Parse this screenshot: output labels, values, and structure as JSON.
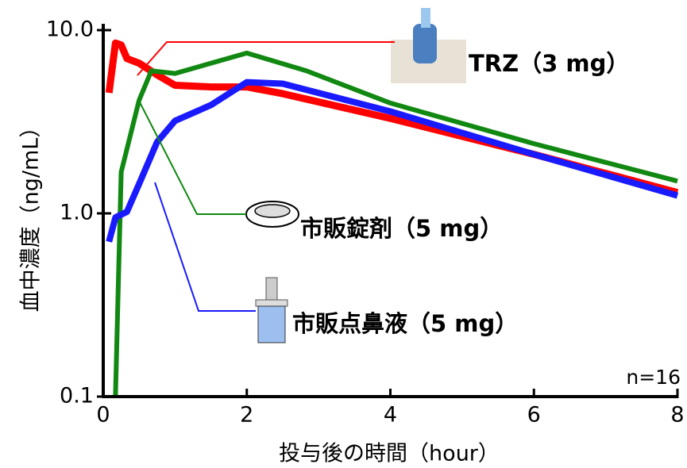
{
  "chart_data": {
    "type": "line",
    "xlabel": "投与後の時間（hour）",
    "ylabel": "血中濃度（ng/mL）",
    "annotation": "n=16",
    "log_y": true,
    "xlim": [
      0,
      8
    ],
    "xticks": [
      0,
      2,
      4,
      6,
      8
    ],
    "ylim": [
      0.1,
      10
    ],
    "yticks": [
      {
        "value": 10,
        "label": "10.0"
      },
      {
        "value": 1,
        "label": "1.0"
      },
      0.1
    ],
    "series": [
      {
        "name": "TRZ（3 mg）",
        "color": "#ff0000",
        "x": [
          0.08,
          0.17,
          0.25,
          0.33,
          0.5,
          0.75,
          1,
          1.5,
          2,
          2.5,
          4,
          6,
          8
        ],
        "values": [
          4.55,
          8.5,
          8.3,
          7.0,
          6.6,
          5.7,
          5.0,
          4.9,
          4.9,
          4.5,
          3.3,
          2.1,
          1.3
        ]
      },
      {
        "name": "市販錠剤（5 mg）",
        "color": "#118811",
        "x": [
          0.17,
          0.25,
          0.5,
          0.67,
          1,
          2,
          2.83,
          4,
          6,
          8
        ],
        "values": [
          0.1,
          1.68,
          4.15,
          6.0,
          5.8,
          7.5,
          6.0,
          4.0,
          2.4,
          1.5
        ]
      },
      {
        "name": "市販点鼻液（5 mg）",
        "color": "#1a1aff",
        "x": [
          0.08,
          0.17,
          0.33,
          0.5,
          0.75,
          1,
          1.5,
          2,
          2.5,
          4,
          6,
          8
        ],
        "values": [
          0.7,
          0.95,
          1.02,
          1.45,
          2.45,
          3.2,
          3.9,
          5.2,
          5.1,
          3.6,
          2.1,
          1.25
        ]
      }
    ]
  }
}
